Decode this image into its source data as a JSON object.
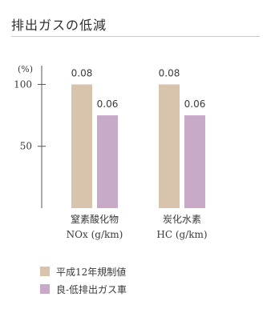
{
  "chart_data": {
    "type": "bar",
    "title": "排出ガスの低減",
    "ylabel_unit": "(%)",
    "y_ticks": [
      50,
      100
    ],
    "ylim": [
      0,
      110
    ],
    "grid": false,
    "legend_position": "bottom-left",
    "categories": [
      {
        "line1": "窒素酸化物",
        "line2": "NOx (g/km)"
      },
      {
        "line1": "炭化水素",
        "line2": "HC (g/km)"
      }
    ],
    "series": [
      {
        "name": "平成12年規制値",
        "color": "#d8c4ad",
        "values": [
          100,
          100
        ],
        "data_labels": [
          "0.08",
          "0.08"
        ]
      },
      {
        "name": "良-低排出ガス車",
        "color": "#c9a9c8",
        "values": [
          75,
          75
        ],
        "data_labels": [
          "0.06",
          "0.06"
        ]
      }
    ]
  }
}
